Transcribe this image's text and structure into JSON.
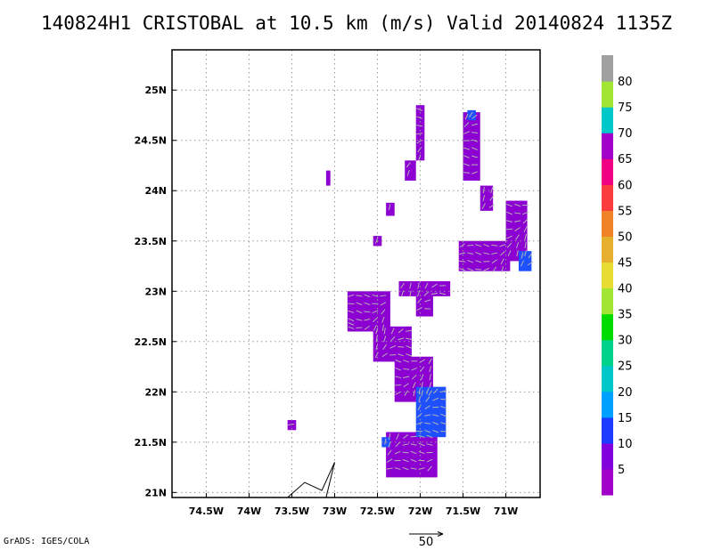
{
  "title": "140824H1 CRISTOBAL at 10.5 km (m/s) Valid 20140824 1135Z",
  "footer": "GrADS: IGES/COLA",
  "map": {
    "lon_range": [
      -74.9,
      -70.6
    ],
    "lat_range": [
      20.95,
      25.4
    ],
    "x_ticks": [
      {
        "value": -74.5,
        "label": "74.5W"
      },
      {
        "value": -74.0,
        "label": "74W"
      },
      {
        "value": -73.5,
        "label": "73.5W"
      },
      {
        "value": -73.0,
        "label": "73W"
      },
      {
        "value": -72.5,
        "label": "72.5W"
      },
      {
        "value": -72.0,
        "label": "72W"
      },
      {
        "value": -71.5,
        "label": "71.5W"
      },
      {
        "value": -71.0,
        "label": "71W"
      }
    ],
    "y_ticks": [
      {
        "value": 21.0,
        "label": "21N"
      },
      {
        "value": 21.5,
        "label": "21.5N"
      },
      {
        "value": 22.0,
        "label": "22N"
      },
      {
        "value": 22.5,
        "label": "22.5N"
      },
      {
        "value": 23.0,
        "label": "23N"
      },
      {
        "value": 23.5,
        "label": "23.5N"
      },
      {
        "value": 24.0,
        "label": "24N"
      },
      {
        "value": 24.5,
        "label": "24.5N"
      },
      {
        "value": 25.0,
        "label": "25N"
      }
    ],
    "grid": true,
    "coastline": [
      [
        -73.55,
        20.95
      ],
      [
        -73.35,
        21.1
      ],
      [
        -73.15,
        21.02
      ],
      [
        -73.0,
        21.3
      ],
      [
        -73.1,
        20.95
      ]
    ]
  },
  "colorbar": {
    "colors": [
      "#a000c8",
      "#8200dc",
      "#1e3cff",
      "#00a0ff",
      "#00c8c8",
      "#00d28c",
      "#00dc00",
      "#a0e632",
      "#e6dc32",
      "#e6af2d",
      "#f08228",
      "#fa3c3c",
      "#f00082",
      "#a000c8",
      "#00c8c8",
      "#a0e632",
      "#a0a0a0"
    ],
    "labels": [
      "5",
      "10",
      "15",
      "20",
      "25",
      "30",
      "35",
      "40",
      "45",
      "50",
      "55",
      "60",
      "65",
      "70",
      "75",
      "80"
    ]
  },
  "wind": {
    "colors": {
      "purple": "#8c00d2",
      "blue": "#1e50ff",
      "arrow": "#b4b4b4"
    },
    "regions": [
      {
        "color": "purple",
        "lon": [
          -72.05,
          -71.95
        ],
        "lat": [
          24.3,
          24.85
        ]
      },
      {
        "color": "purple",
        "lon": [
          -72.18,
          -72.05
        ],
        "lat": [
          24.1,
          24.3
        ]
      },
      {
        "color": "purple",
        "lon": [
          -73.1,
          -73.05
        ],
        "lat": [
          24.05,
          24.2
        ]
      },
      {
        "color": "purple",
        "lon": [
          -72.4,
          -72.3
        ],
        "lat": [
          23.75,
          23.88
        ]
      },
      {
        "color": "purple",
        "lon": [
          -72.55,
          -72.45
        ],
        "lat": [
          23.45,
          23.55
        ]
      },
      {
        "color": "purple",
        "lon": [
          -72.25,
          -71.65
        ],
        "lat": [
          22.95,
          23.1
        ]
      },
      {
        "color": "purple",
        "lon": [
          -72.05,
          -71.85
        ],
        "lat": [
          22.75,
          22.95
        ]
      },
      {
        "color": "purple",
        "lon": [
          -72.85,
          -72.35
        ],
        "lat": [
          22.6,
          23.0
        ]
      },
      {
        "color": "purple",
        "lon": [
          -72.55,
          -72.1
        ],
        "lat": [
          22.3,
          22.65
        ]
      },
      {
        "color": "purple",
        "lon": [
          -72.3,
          -71.85
        ],
        "lat": [
          21.9,
          22.35
        ]
      },
      {
        "color": "purple",
        "lon": [
          -72.85,
          -72.75
        ],
        "lat": [
          22.62,
          22.72
        ]
      },
      {
        "color": "purple",
        "lon": [
          -72.4,
          -71.8
        ],
        "lat": [
          21.15,
          21.6
        ]
      },
      {
        "color": "purple",
        "lon": [
          -73.55,
          -73.45
        ],
        "lat": [
          21.62,
          21.72
        ]
      },
      {
        "color": "blue",
        "lon": [
          -72.05,
          -71.7
        ],
        "lat": [
          21.55,
          22.05
        ]
      },
      {
        "color": "blue",
        "lon": [
          -72.45,
          -72.35
        ],
        "lat": [
          21.45,
          21.55
        ]
      },
      {
        "color": "purple",
        "lon": [
          -71.5,
          -71.3
        ],
        "lat": [
          24.1,
          24.78
        ]
      },
      {
        "color": "purple",
        "lon": [
          -71.3,
          -71.15
        ],
        "lat": [
          23.8,
          24.05
        ]
      },
      {
        "color": "purple",
        "lon": [
          -71.0,
          -70.75
        ],
        "lat": [
          23.3,
          23.9
        ]
      },
      {
        "color": "purple",
        "lon": [
          -71.55,
          -70.95
        ],
        "lat": [
          23.2,
          23.5
        ]
      },
      {
        "color": "blue",
        "lon": [
          -70.85,
          -70.7
        ],
        "lat": [
          23.2,
          23.4
        ]
      },
      {
        "color": "blue",
        "lon": [
          -71.45,
          -71.35
        ],
        "lat": [
          24.7,
          24.8
        ]
      }
    ],
    "reference_vector": {
      "label": "50"
    }
  }
}
